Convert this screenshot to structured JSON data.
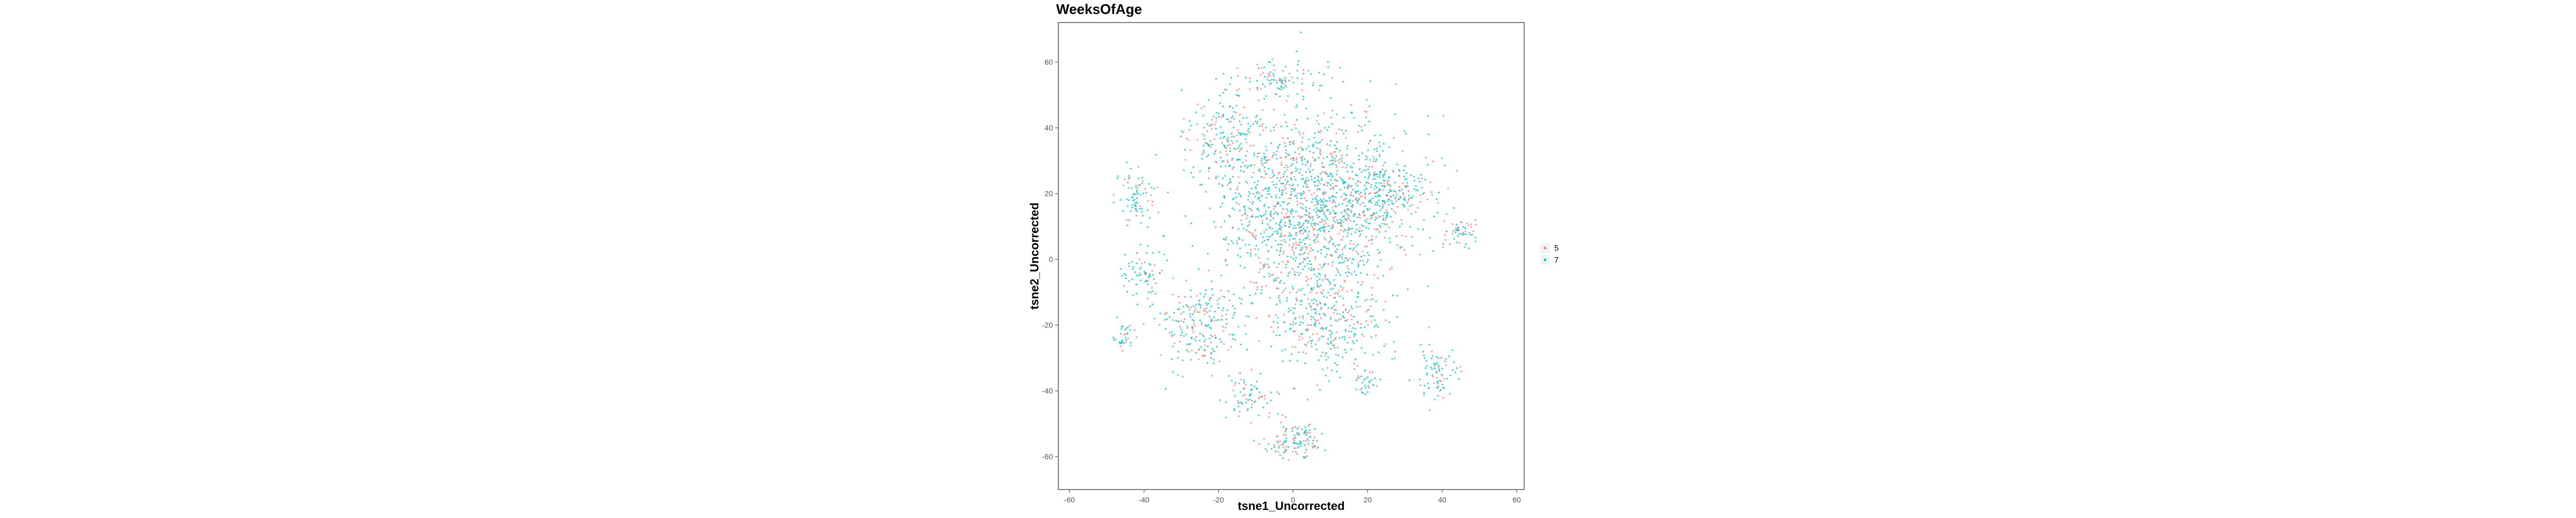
{
  "chart_data": {
    "type": "scatter",
    "title": "WeeksOfAge",
    "xlabel": "tsne1_Uncorrected",
    "ylabel": "tsne2_Uncorrected",
    "xlim": [
      -63,
      62
    ],
    "ylim": [
      -70,
      72
    ],
    "x_ticks": [
      -60,
      -40,
      -20,
      0,
      20,
      40,
      60
    ],
    "y_ticks": [
      -60,
      -40,
      -20,
      0,
      20,
      40,
      60
    ],
    "x_tick_labels": [
      "-60",
      "-40",
      "-20",
      "0",
      "20",
      "40",
      "60"
    ],
    "y_tick_labels": [
      "-60",
      "-40",
      "-20",
      "0",
      "20",
      "40",
      "60"
    ],
    "grid": false,
    "legend_position": "right",
    "colors": {
      "series_5": "#F8766D",
      "series_7": "#00BFC4",
      "frame": "#555555",
      "text": "#000000"
    },
    "series": [
      {
        "name": "5",
        "color": "#F8766D",
        "share": 0.33
      },
      {
        "name": "7",
        "color": "#00BFC4",
        "share": 0.67
      }
    ],
    "clusters": [
      {
        "center": [
          5,
          15
        ],
        "spread": [
          22,
          28
        ],
        "count": 1500
      },
      {
        "center": [
          -18,
          38
        ],
        "spread": [
          9,
          12
        ],
        "count": 180
      },
      {
        "center": [
          -5,
          55
        ],
        "spread": [
          8,
          6
        ],
        "count": 90
      },
      {
        "center": [
          -42,
          20
        ],
        "spread": [
          5,
          8
        ],
        "count": 80
      },
      {
        "center": [
          -40,
          -5
        ],
        "spread": [
          5,
          8
        ],
        "count": 70
      },
      {
        "center": [
          25,
          20
        ],
        "spread": [
          12,
          10
        ],
        "count": 220
      },
      {
        "center": [
          45,
          8
        ],
        "spread": [
          4,
          4
        ],
        "count": 50
      },
      {
        "center": [
          -25,
          -20
        ],
        "spread": [
          10,
          12
        ],
        "count": 220
      },
      {
        "center": [
          10,
          -20
        ],
        "spread": [
          14,
          12
        ],
        "count": 280
      },
      {
        "center": [
          -45,
          -23
        ],
        "spread": [
          3,
          4
        ],
        "count": 35
      },
      {
        "center": [
          38,
          -35
        ],
        "spread": [
          5,
          7
        ],
        "count": 80
      },
      {
        "center": [
          20,
          -38
        ],
        "spread": [
          3,
          3
        ],
        "count": 30
      },
      {
        "center": [
          0,
          -55
        ],
        "spread": [
          7,
          5
        ],
        "count": 120
      },
      {
        "center": [
          -12,
          -42
        ],
        "spread": [
          6,
          6
        ],
        "count": 70
      }
    ]
  }
}
